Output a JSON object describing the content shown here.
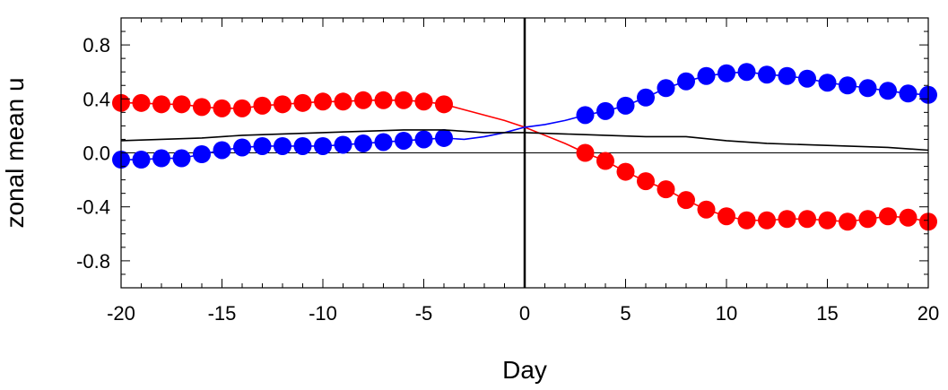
{
  "chart_data": {
    "type": "line",
    "xlabel": "Day",
    "ylabel": "zonal mean u",
    "xlim": [
      -20,
      20
    ],
    "ylim": [
      -1.0,
      1.0
    ],
    "xticks": [
      -20,
      -15,
      -10,
      -5,
      0,
      5,
      10,
      15,
      20
    ],
    "xtick_labels": [
      "-20",
      "-15",
      "-10",
      "-5",
      "0",
      "5",
      "10",
      "15",
      "20"
    ],
    "yticks": [
      0.8,
      0.4,
      0.0,
      -0.4,
      -0.8
    ],
    "ytick_labels": [
      "0.8",
      "0.4",
      "0.0",
      "-0.4",
      "-0.8"
    ],
    "zero_lines": true,
    "series": [
      {
        "color": "#ff0000",
        "markers": true,
        "x": [
          -20,
          -19,
          -18,
          -17,
          -16,
          -15,
          -14,
          -13,
          -12,
          -11,
          -10,
          -9,
          -8,
          -7,
          -6,
          -5,
          -4,
          -3,
          -2,
          -1,
          0,
          1,
          2,
          3,
          4,
          5,
          6,
          7,
          8,
          9,
          10,
          11,
          12,
          13,
          14,
          15,
          16,
          17,
          18,
          19,
          20
        ],
        "y": [
          0.37,
          0.37,
          0.36,
          0.36,
          0.34,
          0.33,
          0.33,
          0.35,
          0.36,
          0.37,
          0.38,
          0.38,
          0.39,
          0.39,
          0.39,
          0.38,
          0.36,
          0.32,
          0.28,
          0.24,
          0.19,
          0.13,
          0.07,
          0.0,
          -0.06,
          -0.14,
          -0.21,
          -0.27,
          -0.35,
          -0.42,
          -0.47,
          -0.5,
          -0.5,
          -0.49,
          -0.49,
          -0.5,
          -0.51,
          -0.49,
          -0.47,
          -0.48,
          -0.51
        ],
        "marker_mask": [
          1,
          1,
          1,
          1,
          1,
          1,
          1,
          1,
          1,
          1,
          1,
          1,
          1,
          1,
          1,
          1,
          1,
          0,
          0,
          0,
          0,
          0,
          0,
          1,
          1,
          1,
          1,
          1,
          1,
          1,
          1,
          1,
          1,
          1,
          1,
          1,
          1,
          1,
          1,
          1,
          1
        ]
      },
      {
        "color": "#0000ff",
        "markers": true,
        "x": [
          -20,
          -19,
          -18,
          -17,
          -16,
          -15,
          -14,
          -13,
          -12,
          -11,
          -10,
          -9,
          -8,
          -7,
          -6,
          -5,
          -4,
          -3,
          -2,
          -1,
          0,
          1,
          2,
          3,
          4,
          5,
          6,
          7,
          8,
          9,
          10,
          11,
          12,
          13,
          14,
          15,
          16,
          17,
          18,
          19,
          20
        ],
        "y": [
          -0.05,
          -0.05,
          -0.04,
          -0.04,
          -0.01,
          0.02,
          0.04,
          0.05,
          0.05,
          0.05,
          0.05,
          0.06,
          0.07,
          0.08,
          0.09,
          0.1,
          0.11,
          0.1,
          0.12,
          0.15,
          0.19,
          0.21,
          0.24,
          0.28,
          0.31,
          0.35,
          0.41,
          0.48,
          0.53,
          0.57,
          0.59,
          0.6,
          0.58,
          0.57,
          0.55,
          0.52,
          0.5,
          0.48,
          0.46,
          0.44,
          0.43
        ],
        "marker_mask": [
          1,
          1,
          1,
          1,
          1,
          1,
          1,
          1,
          1,
          1,
          1,
          1,
          1,
          1,
          1,
          1,
          1,
          0,
          0,
          0,
          0,
          0,
          0,
          1,
          1,
          1,
          1,
          1,
          1,
          1,
          1,
          1,
          1,
          1,
          1,
          1,
          1,
          1,
          1,
          1,
          1
        ]
      },
      {
        "color": "#000000",
        "markers": false,
        "x": [
          -20,
          -18,
          -16,
          -14,
          -12,
          -10,
          -8,
          -6,
          -4,
          -2,
          0,
          2,
          4,
          6,
          8,
          10,
          12,
          14,
          16,
          18,
          20
        ],
        "y": [
          0.09,
          0.1,
          0.11,
          0.13,
          0.14,
          0.15,
          0.16,
          0.17,
          0.17,
          0.15,
          0.15,
          0.14,
          0.13,
          0.12,
          0.12,
          0.09,
          0.07,
          0.06,
          0.05,
          0.04,
          0.02
        ]
      }
    ]
  }
}
